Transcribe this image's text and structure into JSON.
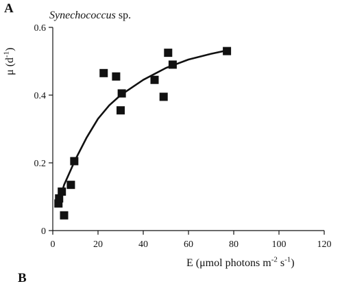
{
  "panel_letter": "A",
  "next_panel_letter": "B",
  "chart_data": {
    "type": "scatter",
    "title_italic": "Synechococcus",
    "title_rest": " sp.",
    "ylabel_main": "μ (d",
    "ylabel_sup": "-1",
    "ylabel_end": ")",
    "xlabel_main": "E (μmol photons m",
    "xlabel_sup1": "-2",
    "xlabel_mid": " s",
    "xlabel_sup2": "-1",
    "xlabel_end": ")",
    "xlim": [
      0,
      120
    ],
    "ylim": [
      0,
      0.6
    ],
    "x_ticks": [
      0,
      20,
      40,
      60,
      80,
      100,
      120
    ],
    "y_ticks": [
      0,
      0.2,
      0.4,
      0.6
    ],
    "y_tick_labels": [
      "0",
      "0.2",
      "0.4",
      "0.6"
    ],
    "grid": false,
    "points": [
      {
        "x": 2.5,
        "y": 0.08
      },
      {
        "x": 2.8,
        "y": 0.095
      },
      {
        "x": 4,
        "y": 0.115
      },
      {
        "x": 5,
        "y": 0.045
      },
      {
        "x": 8,
        "y": 0.135
      },
      {
        "x": 9.5,
        "y": 0.205
      },
      {
        "x": 22.5,
        "y": 0.465
      },
      {
        "x": 28,
        "y": 0.455
      },
      {
        "x": 30,
        "y": 0.355
      },
      {
        "x": 30.5,
        "y": 0.405
      },
      {
        "x": 45,
        "y": 0.445
      },
      {
        "x": 49,
        "y": 0.395
      },
      {
        "x": 51,
        "y": 0.525
      },
      {
        "x": 53,
        "y": 0.49
      },
      {
        "x": 77,
        "y": 0.53
      }
    ],
    "fit_curve": {
      "x": [
        3,
        5,
        10,
        15,
        20,
        25,
        30,
        40,
        50,
        60,
        70,
        77
      ],
      "y": [
        0.09,
        0.135,
        0.21,
        0.275,
        0.33,
        0.37,
        0.4,
        0.445,
        0.48,
        0.505,
        0.522,
        0.532
      ]
    }
  }
}
